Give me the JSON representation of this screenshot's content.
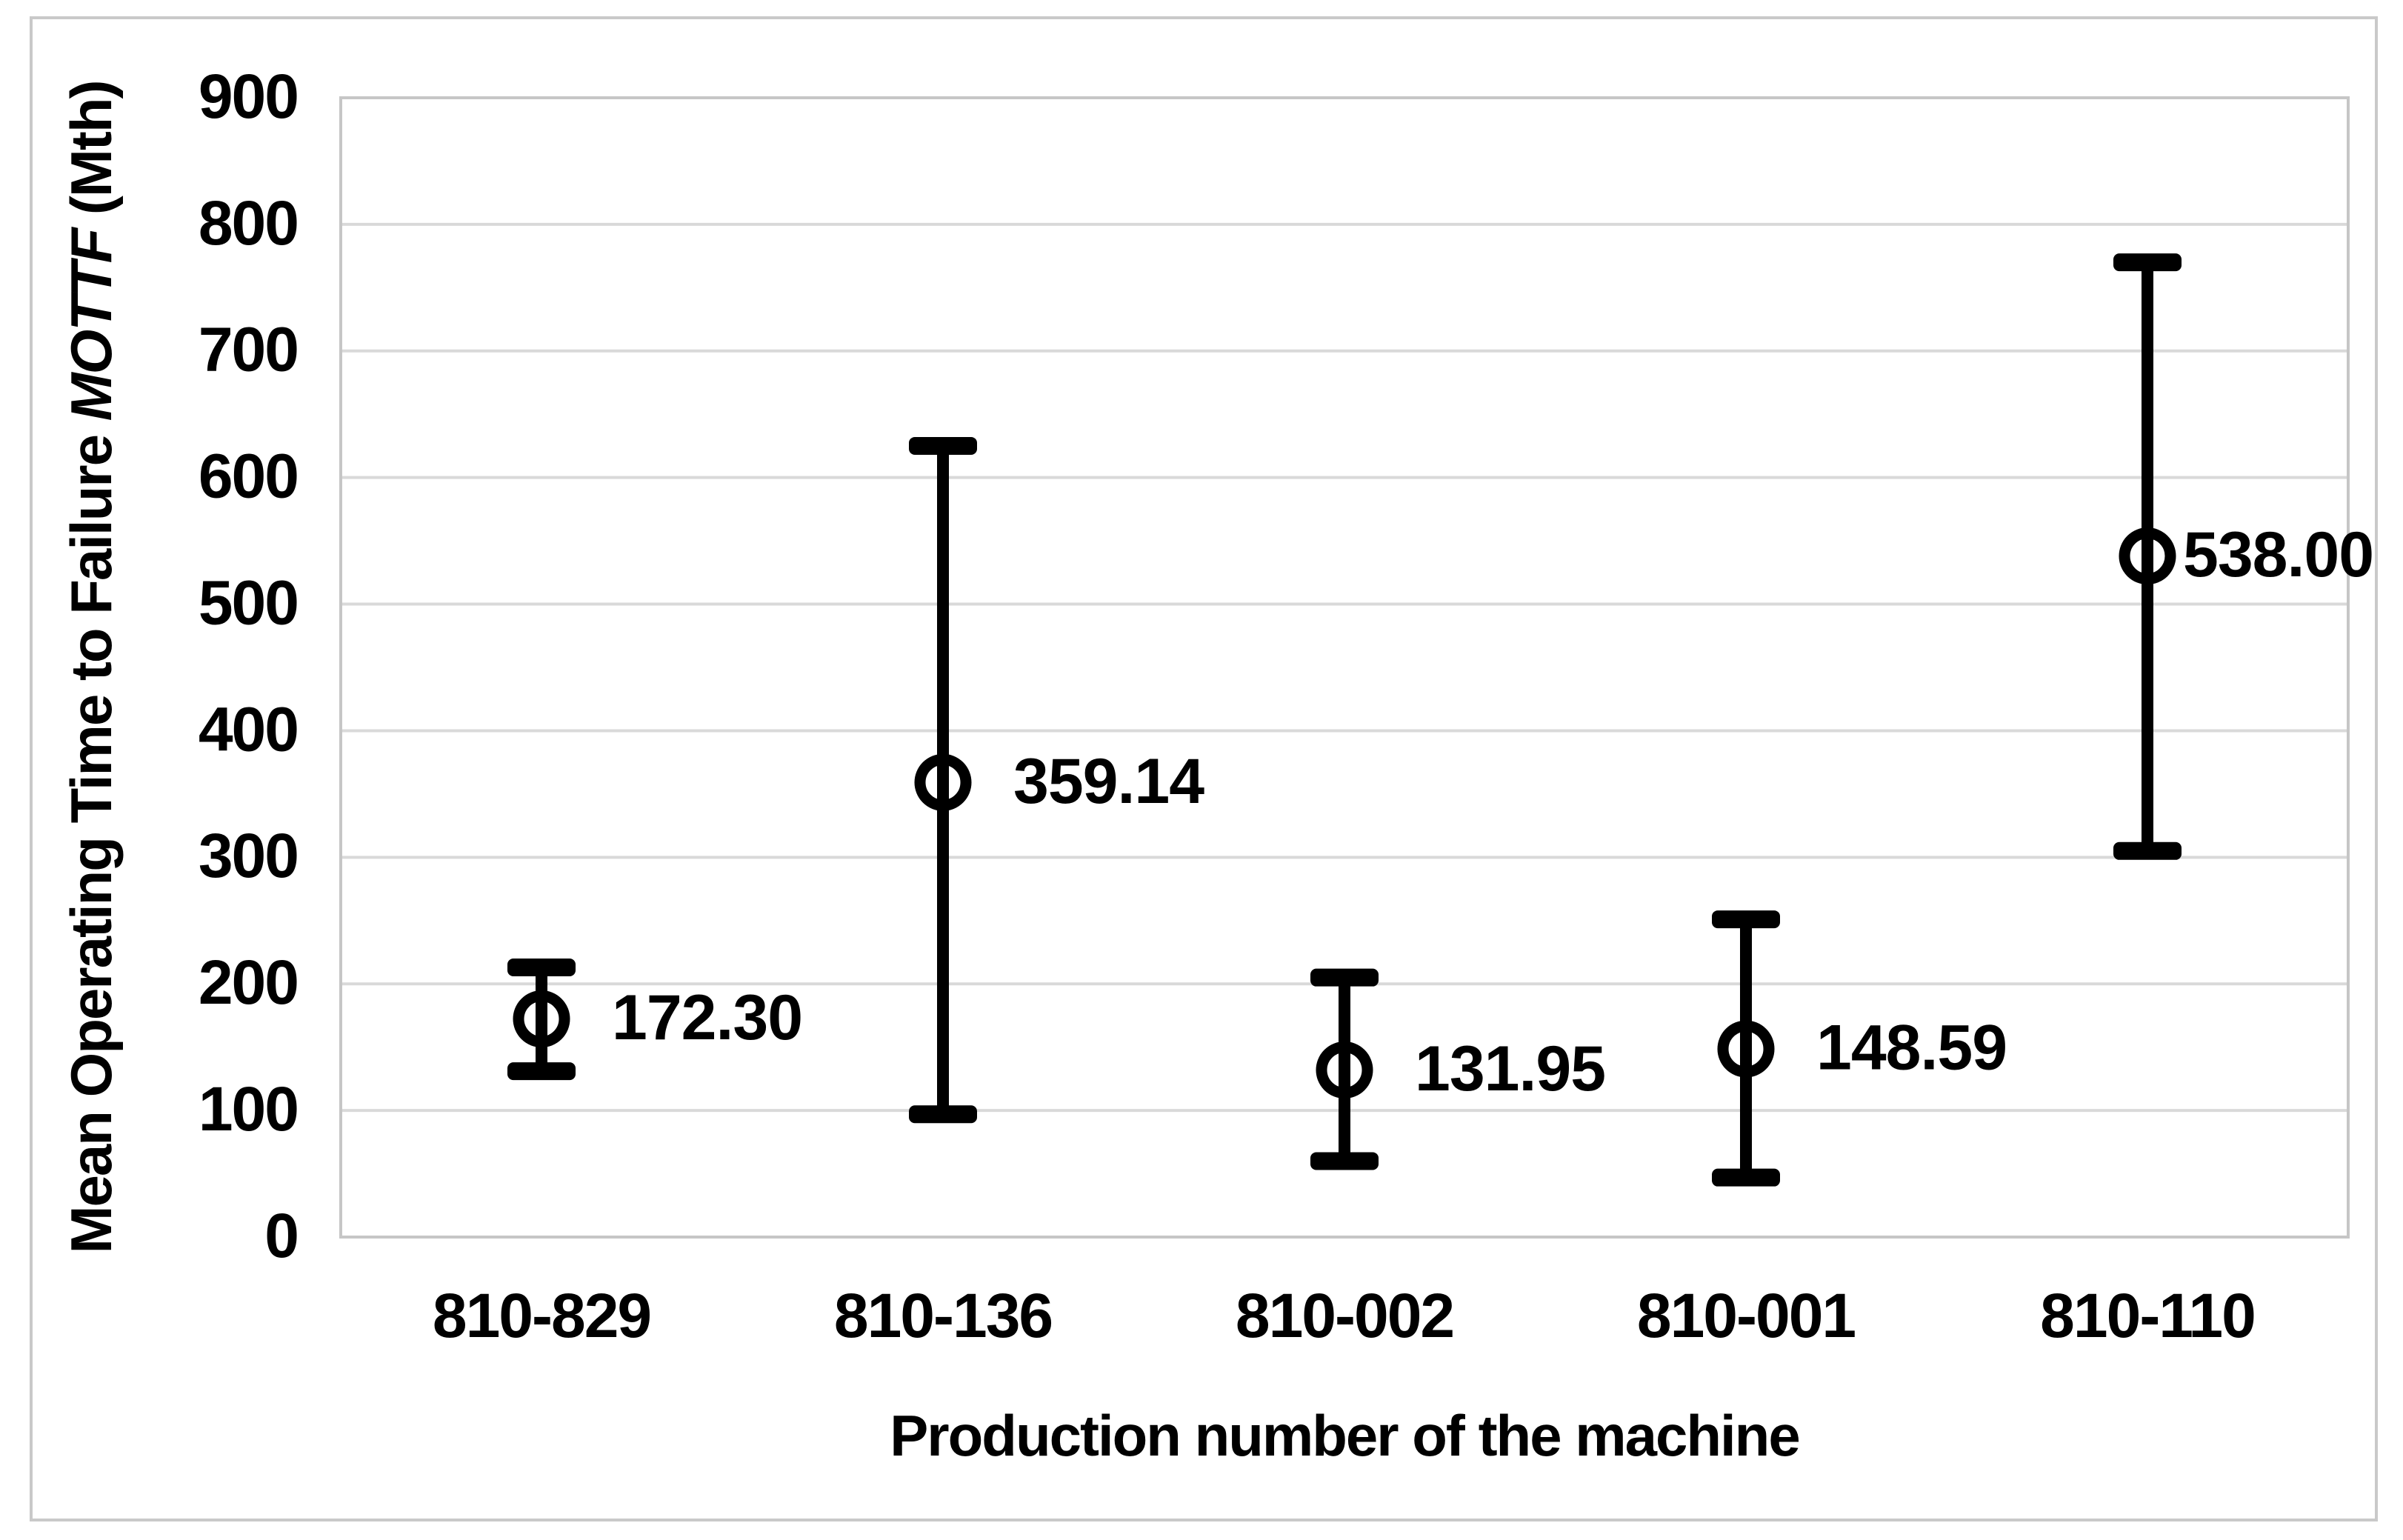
{
  "figure": {
    "background_color": "#ffffff",
    "border_color": "#c9c9c9"
  },
  "chart_data": {
    "type": "scatter",
    "subtype": "points-with-error-bars",
    "title": "",
    "xlabel": "Production number of the machine",
    "ylabel": "Mean Operating Time to Failure MOTTF (Mth)",
    "ylabel_parts": {
      "prefix": "Mean Operating Time to Failure ",
      "italic": "MOTTF",
      "suffix": " (Mth)"
    },
    "categories": [
      "810-829",
      "810-136",
      "810-002",
      "810-001",
      "810-110"
    ],
    "series": [
      {
        "name": "MOTTF",
        "values": [
          172.3,
          359.14,
          131.95,
          148.59,
          538.0
        ],
        "error_low": [
          131,
          97,
          60,
          47,
          305
        ],
        "error_high": [
          213,
          625,
          205,
          251,
          770
        ]
      }
    ],
    "data_labels": [
      "172.30",
      "359.14",
      "131.95",
      "148.59",
      "538.00"
    ],
    "ylim": [
      0,
      900
    ],
    "yticks": [
      0,
      100,
      200,
      300,
      400,
      500,
      600,
      700,
      800,
      900
    ],
    "grid": "horizontal",
    "gridline_color": "#d9d9d9",
    "plot_border_color": "#c6c6c6",
    "series_color": "#000000",
    "marker": "open-circle",
    "legend": "none"
  }
}
